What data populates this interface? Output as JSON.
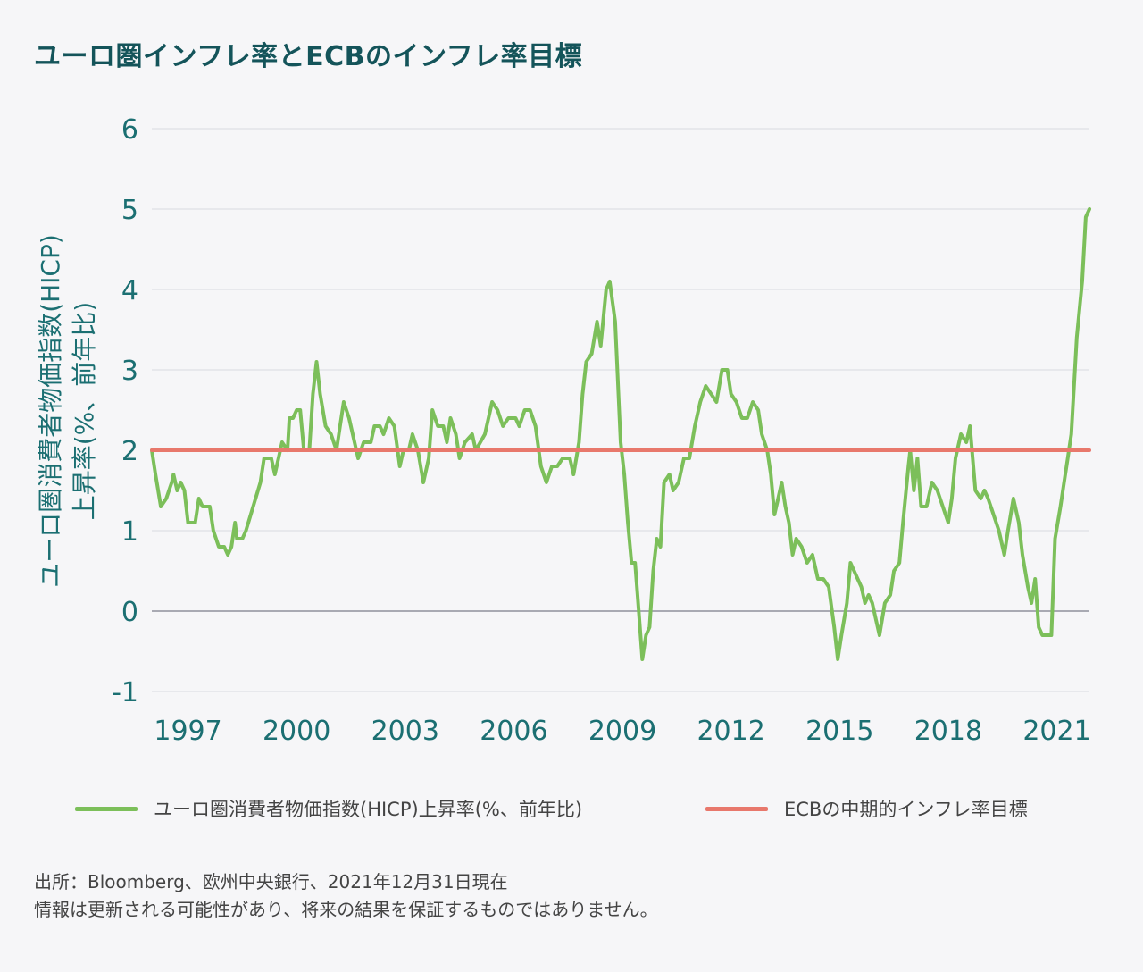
{
  "header": {
    "title": "ユーロ圏インフレ率とECBのインフレ率目標"
  },
  "axis": {
    "ylabel_line1": "ユーロ圏消費者物価指数(HICP)",
    "ylabel_line2": "上昇率(%、前年比)"
  },
  "legend": {
    "items": [
      {
        "label": "ユーロ圏消費者物価指数(HICP)上昇率(%、前年比)",
        "color": "#7cbf5a"
      },
      {
        "label": "ECBの中期的インフレ率目標",
        "color": "#e8786c"
      }
    ]
  },
  "footer": {
    "line1": "出所：Bloomberg、欧州中央銀行、2021年12月31日現在",
    "line2": "情報は更新される可能性があり、将来の結果を保証するものではありません。"
  },
  "chart_data": {
    "type": "line",
    "title": "ユーロ圏インフレ率とECBのインフレ率目標",
    "xlabel": "",
    "ylabel": "ユーロ圏消費者物価指数(HICP)上昇率(%、前年比)",
    "x_ticks": [
      1997,
      2000,
      2003,
      2006,
      2009,
      2012,
      2015,
      2018,
      2021
    ],
    "y_ticks": [
      -1,
      0,
      1,
      2,
      3,
      4,
      5,
      6
    ],
    "xlim": [
      1996.0,
      2021.9
    ],
    "ylim": [
      -1,
      6
    ],
    "grid": true,
    "legend_position": "bottom",
    "series": [
      {
        "name": "ユーロ圏消費者物価指数(HICP)上昇率(%、前年比)",
        "color": "#7cbf5a",
        "points": [
          [
            1996.0,
            2.0
          ],
          [
            1996.1,
            1.7
          ],
          [
            1996.25,
            1.3
          ],
          [
            1996.4,
            1.4
          ],
          [
            1996.55,
            1.6
          ],
          [
            1996.6,
            1.7
          ],
          [
            1996.7,
            1.5
          ],
          [
            1996.8,
            1.6
          ],
          [
            1996.9,
            1.5
          ],
          [
            1997.0,
            1.1
          ],
          [
            1997.2,
            1.1
          ],
          [
            1997.3,
            1.4
          ],
          [
            1997.4,
            1.3
          ],
          [
            1997.6,
            1.3
          ],
          [
            1997.7,
            1.0
          ],
          [
            1997.85,
            0.8
          ],
          [
            1998.0,
            0.8
          ],
          [
            1998.1,
            0.7
          ],
          [
            1998.2,
            0.8
          ],
          [
            1998.3,
            1.1
          ],
          [
            1998.35,
            0.9
          ],
          [
            1998.5,
            0.9
          ],
          [
            1998.6,
            1.0
          ],
          [
            1998.8,
            1.3
          ],
          [
            1999.0,
            1.6
          ],
          [
            1999.1,
            1.9
          ],
          [
            1999.3,
            1.9
          ],
          [
            1999.4,
            1.7
          ],
          [
            1999.55,
            2.0
          ],
          [
            1999.6,
            2.1
          ],
          [
            1999.75,
            2.0
          ],
          [
            1999.8,
            2.4
          ],
          [
            1999.9,
            2.4
          ],
          [
            2000.0,
            2.5
          ],
          [
            2000.1,
            2.5
          ],
          [
            2000.2,
            2.0
          ],
          [
            2000.35,
            2.0
          ],
          [
            2000.45,
            2.7
          ],
          [
            2000.55,
            3.1
          ],
          [
            2000.65,
            2.7
          ],
          [
            2000.8,
            2.3
          ],
          [
            2000.95,
            2.2
          ],
          [
            2001.1,
            2.0
          ],
          [
            2001.2,
            2.3
          ],
          [
            2001.3,
            2.6
          ],
          [
            2001.45,
            2.4
          ],
          [
            2001.6,
            2.1
          ],
          [
            2001.7,
            1.9
          ],
          [
            2001.85,
            2.1
          ],
          [
            2002.05,
            2.1
          ],
          [
            2002.15,
            2.3
          ],
          [
            2002.3,
            2.3
          ],
          [
            2002.4,
            2.2
          ],
          [
            2002.55,
            2.4
          ],
          [
            2002.7,
            2.3
          ],
          [
            2002.85,
            1.8
          ],
          [
            2002.95,
            2.0
          ],
          [
            2003.1,
            2.0
          ],
          [
            2003.2,
            2.2
          ],
          [
            2003.35,
            2.0
          ],
          [
            2003.5,
            1.6
          ],
          [
            2003.65,
            1.9
          ],
          [
            2003.75,
            2.5
          ],
          [
            2003.9,
            2.3
          ],
          [
            2004.05,
            2.3
          ],
          [
            2004.15,
            2.1
          ],
          [
            2004.25,
            2.4
          ],
          [
            2004.4,
            2.2
          ],
          [
            2004.5,
            1.9
          ],
          [
            2004.65,
            2.1
          ],
          [
            2004.85,
            2.2
          ],
          [
            2004.95,
            2.0
          ],
          [
            2005.2,
            2.2
          ],
          [
            2005.4,
            2.6
          ],
          [
            2005.55,
            2.5
          ],
          [
            2005.7,
            2.3
          ],
          [
            2005.85,
            2.4
          ],
          [
            2006.05,
            2.4
          ],
          [
            2006.15,
            2.3
          ],
          [
            2006.3,
            2.5
          ],
          [
            2006.45,
            2.5
          ],
          [
            2006.6,
            2.3
          ],
          [
            2006.75,
            1.8
          ],
          [
            2006.9,
            1.6
          ],
          [
            2007.05,
            1.8
          ],
          [
            2007.2,
            1.8
          ],
          [
            2007.35,
            1.9
          ],
          [
            2007.55,
            1.9
          ],
          [
            2007.65,
            1.7
          ],
          [
            2007.8,
            2.1
          ],
          [
            2007.9,
            2.7
          ],
          [
            2008.0,
            3.1
          ],
          [
            2008.15,
            3.2
          ],
          [
            2008.3,
            3.6
          ],
          [
            2008.4,
            3.3
          ],
          [
            2008.55,
            4.0
          ],
          [
            2008.65,
            4.1
          ],
          [
            2008.8,
            3.6
          ],
          [
            2008.95,
            2.1
          ],
          [
            2009.05,
            1.7
          ],
          [
            2009.15,
            1.1
          ],
          [
            2009.25,
            0.6
          ],
          [
            2009.35,
            0.6
          ],
          [
            2009.45,
            0.0
          ],
          [
            2009.55,
            -0.6
          ],
          [
            2009.65,
            -0.3
          ],
          [
            2009.75,
            -0.2
          ],
          [
            2009.85,
            0.5
          ],
          [
            2009.95,
            0.9
          ],
          [
            2010.05,
            0.8
          ],
          [
            2010.15,
            1.6
          ],
          [
            2010.3,
            1.7
          ],
          [
            2010.4,
            1.5
          ],
          [
            2010.55,
            1.6
          ],
          [
            2010.7,
            1.9
          ],
          [
            2010.85,
            1.9
          ],
          [
            2011.0,
            2.3
          ],
          [
            2011.15,
            2.6
          ],
          [
            2011.3,
            2.8
          ],
          [
            2011.45,
            2.7
          ],
          [
            2011.6,
            2.6
          ],
          [
            2011.75,
            3.0
          ],
          [
            2011.9,
            3.0
          ],
          [
            2012.0,
            2.7
          ],
          [
            2012.15,
            2.6
          ],
          [
            2012.3,
            2.4
          ],
          [
            2012.45,
            2.4
          ],
          [
            2012.6,
            2.6
          ],
          [
            2012.75,
            2.5
          ],
          [
            2012.85,
            2.2
          ],
          [
            2013.0,
            2.0
          ],
          [
            2013.1,
            1.7
          ],
          [
            2013.2,
            1.2
          ],
          [
            2013.3,
            1.4
          ],
          [
            2013.4,
            1.6
          ],
          [
            2013.5,
            1.3
          ],
          [
            2013.6,
            1.1
          ],
          [
            2013.7,
            0.7
          ],
          [
            2013.8,
            0.9
          ],
          [
            2013.95,
            0.8
          ],
          [
            2014.1,
            0.6
          ],
          [
            2014.25,
            0.7
          ],
          [
            2014.4,
            0.4
          ],
          [
            2014.55,
            0.4
          ],
          [
            2014.7,
            0.3
          ],
          [
            2014.85,
            -0.2
          ],
          [
            2014.95,
            -0.6
          ],
          [
            2015.05,
            -0.3
          ],
          [
            2015.2,
            0.1
          ],
          [
            2015.3,
            0.6
          ],
          [
            2015.5,
            0.4
          ],
          [
            2015.6,
            0.3
          ],
          [
            2015.7,
            0.1
          ],
          [
            2015.8,
            0.2
          ],
          [
            2015.9,
            0.1
          ],
          [
            2016.0,
            -0.1
          ],
          [
            2016.1,
            -0.3
          ],
          [
            2016.25,
            0.1
          ],
          [
            2016.4,
            0.2
          ],
          [
            2016.5,
            0.5
          ],
          [
            2016.65,
            0.6
          ],
          [
            2016.75,
            1.1
          ],
          [
            2016.9,
            1.8
          ],
          [
            2016.95,
            2.0
          ],
          [
            2017.05,
            1.5
          ],
          [
            2017.15,
            1.9
          ],
          [
            2017.25,
            1.3
          ],
          [
            2017.4,
            1.3
          ],
          [
            2017.55,
            1.6
          ],
          [
            2017.7,
            1.5
          ],
          [
            2017.85,
            1.3
          ],
          [
            2018.0,
            1.1
          ],
          [
            2018.1,
            1.4
          ],
          [
            2018.2,
            1.9
          ],
          [
            2018.35,
            2.2
          ],
          [
            2018.5,
            2.1
          ],
          [
            2018.6,
            2.3
          ],
          [
            2018.75,
            1.5
          ],
          [
            2018.9,
            1.4
          ],
          [
            2019.0,
            1.5
          ],
          [
            2019.1,
            1.4
          ],
          [
            2019.25,
            1.2
          ],
          [
            2019.4,
            1.0
          ],
          [
            2019.55,
            0.7
          ],
          [
            2019.65,
            1.0
          ],
          [
            2019.8,
            1.4
          ],
          [
            2019.95,
            1.1
          ],
          [
            2020.05,
            0.7
          ],
          [
            2020.2,
            0.3
          ],
          [
            2020.3,
            0.1
          ],
          [
            2020.4,
            0.4
          ],
          [
            2020.5,
            -0.2
          ],
          [
            2020.6,
            -0.3
          ],
          [
            2020.85,
            -0.3
          ],
          [
            2020.95,
            0.9
          ],
          [
            2021.1,
            1.3
          ],
          [
            2021.2,
            1.6
          ],
          [
            2021.3,
            1.9
          ],
          [
            2021.4,
            2.2
          ],
          [
            2021.55,
            3.4
          ],
          [
            2021.7,
            4.1
          ],
          [
            2021.8,
            4.9
          ],
          [
            2021.9,
            5.0
          ]
        ]
      },
      {
        "name": "ECBの中期的インフレ率目標",
        "color": "#e8786c",
        "points": [
          [
            1996.0,
            2.0
          ],
          [
            2021.9,
            2.0
          ]
        ]
      }
    ]
  }
}
